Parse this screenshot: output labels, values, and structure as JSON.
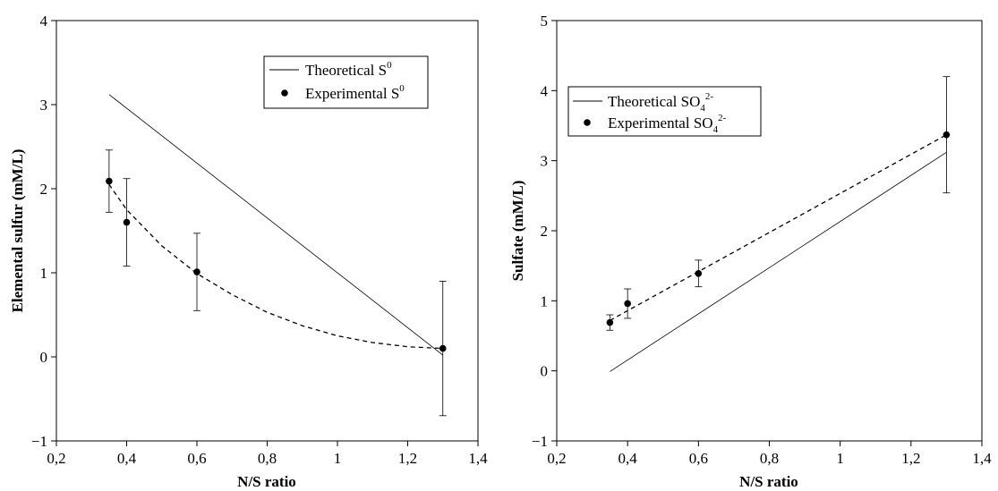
{
  "chart_data": [
    {
      "type": "line",
      "xlabel": "N/S ratio",
      "ylabel": "Elemental sulfur (mM/L)",
      "xlim": [
        0.2,
        1.4
      ],
      "ylim": [
        -1,
        4
      ],
      "x_ticks": [
        0.2,
        0.4,
        0.6,
        0.8,
        1.0,
        1.2,
        1.4
      ],
      "x_tick_labels": [
        "0,2",
        "0,4",
        "0,6",
        "0,8",
        "1",
        "1,2",
        "1,4"
      ],
      "y_ticks": [
        -1,
        0,
        1,
        2,
        3,
        4
      ],
      "y_tick_labels": [
        "−1",
        "0",
        "1",
        "2",
        "3",
        "4"
      ],
      "grid": false,
      "legend_position": "top-right",
      "series": [
        {
          "name": "Theoretical S",
          "name_sup": "0",
          "style": "solid",
          "x": [
            0.35,
            1.3
          ],
          "y": [
            3.12,
            0.02
          ]
        },
        {
          "name": "Experimental S",
          "name_sup": "0",
          "style": "points",
          "x": [
            0.35,
            0.4,
            0.6,
            1.3
          ],
          "y": [
            2.09,
            1.6,
            1.01,
            0.1
          ],
          "error": [
            0.37,
            0.52,
            0.46,
            0.8
          ]
        },
        {
          "style": "dashed-fit",
          "x": [
            0.35,
            0.4,
            0.5,
            0.6,
            0.7,
            0.8,
            0.9,
            1.0,
            1.1,
            1.2,
            1.3
          ],
          "y": [
            2.05,
            1.75,
            1.32,
            0.99,
            0.74,
            0.53,
            0.37,
            0.25,
            0.17,
            0.12,
            0.1
          ]
        }
      ]
    },
    {
      "type": "line",
      "xlabel": "N/S ratio",
      "ylabel": "Sulfate (mM/L)",
      "xlim": [
        0.2,
        1.4
      ],
      "ylim": [
        -1,
        5
      ],
      "x_ticks": [
        0.2,
        0.4,
        0.6,
        0.8,
        1.0,
        1.2,
        1.4
      ],
      "x_tick_labels": [
        "0,2",
        "0,4",
        "0,6",
        "0,8",
        "1",
        "1,2",
        "1,4"
      ],
      "y_ticks": [
        -1,
        0,
        1,
        2,
        3,
        4,
        5
      ],
      "y_tick_labels": [
        "−1",
        "0",
        "1",
        "2",
        "3",
        "4",
        "5"
      ],
      "grid": false,
      "legend_position": "top-left",
      "series": [
        {
          "name": "Theoretical SO",
          "name_sub": "4",
          "name_sup": "2-",
          "style": "solid",
          "x": [
            0.35,
            1.3
          ],
          "y": [
            -0.01,
            3.12
          ]
        },
        {
          "name": "Experimental SO",
          "name_sub": "4",
          "name_sup": "2-",
          "style": "points",
          "x": [
            0.35,
            0.4,
            0.6,
            1.3
          ],
          "y": [
            0.69,
            0.96,
            1.39,
            3.37
          ],
          "error": [
            0.11,
            0.21,
            0.19,
            0.83
          ]
        },
        {
          "style": "dashed-fit",
          "x": [
            0.35,
            1.3
          ],
          "y": [
            0.72,
            3.37
          ]
        }
      ]
    }
  ]
}
